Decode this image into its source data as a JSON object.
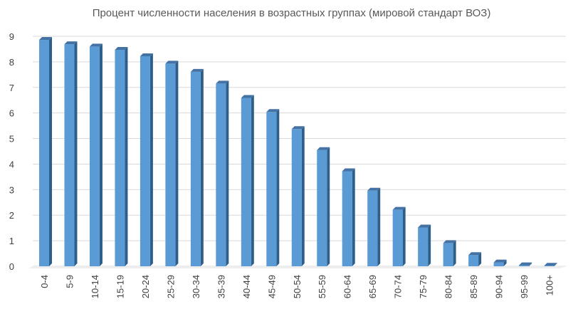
{
  "chart_data": {
    "type": "bar",
    "title": "Процент численности населения в возрастных группах (мировой стандарт ВОЗ)",
    "categories": [
      "0-4",
      "5-9",
      "10-14",
      "15-19",
      "20-24",
      "25-29",
      "30-34",
      "35-39",
      "40-44",
      "45-49",
      "50-54",
      "55-59",
      "60-64",
      "65-69",
      "70-74",
      "75-79",
      "80-84",
      "85-89",
      "90-94",
      "95-99",
      "100+"
    ],
    "values": [
      8.86,
      8.69,
      8.6,
      8.47,
      8.22,
      7.93,
      7.61,
      7.15,
      6.59,
      6.04,
      5.37,
      4.55,
      3.72,
      2.96,
      2.21,
      1.52,
      0.91,
      0.44,
      0.15,
      0.04,
      0.005
    ],
    "ylim": [
      0,
      9
    ],
    "yticks": [
      "0",
      "1",
      "2",
      "3",
      "4",
      "5",
      "6",
      "7",
      "8",
      "9"
    ],
    "xlabel": "",
    "ylabel": "",
    "grid": true,
    "legend": "none",
    "bar_color": "#5b9bd5",
    "bar_side_color": "#2e5f8a",
    "bar_top_color": "#4472a4"
  }
}
